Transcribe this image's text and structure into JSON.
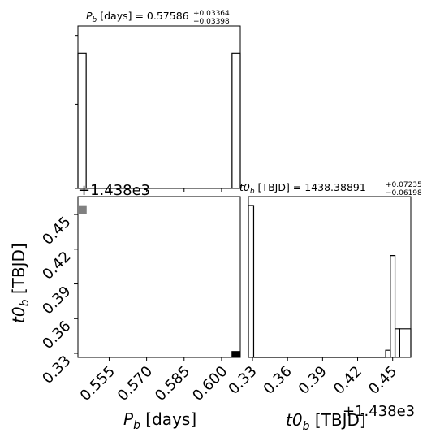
{
  "chart_data": [
    {
      "id": "pb_hist",
      "type": "histogram",
      "title_main": "P",
      "title_sub": "b",
      "title_unit": " [days] = 0.57586",
      "title_plus": "+0.03364",
      "title_minus": "−0.03398",
      "xlim": [
        0.5425,
        0.6075
      ],
      "bins": [
        {
          "x0": 0.5425,
          "x1": 0.5458,
          "count": 1.0
        },
        {
          "x0": 0.6042,
          "x1": 0.6075,
          "count": 1.0
        }
      ],
      "y_max": 1.2
    },
    {
      "id": "t0_hist",
      "type": "histogram",
      "title_main": "t0",
      "title_sub": "b",
      "title_unit": " [TBJD] = 1438.38891",
      "title_plus": "+0.07235",
      "title_minus": "−0.06198",
      "xlim": [
        0.3265,
        0.4655
      ],
      "xticks": [
        "0.33",
        "0.36",
        "0.39",
        "0.42",
        "0.45"
      ],
      "xtick_values": [
        0.33,
        0.36,
        0.39,
        0.42,
        0.45
      ],
      "offset_label": "+1.438e3",
      "xlabel_main": "t0",
      "xlabel_sub": "b",
      "xlabel_unit": " [TBJD]",
      "bins": [
        {
          "x0": 0.3265,
          "x1": 0.331,
          "count": 0.85
        },
        {
          "x0": 0.331,
          "x1": 0.444,
          "count": 0.0
        },
        {
          "x0": 0.444,
          "x1": 0.448,
          "count": 0.04
        },
        {
          "x0": 0.448,
          "x1": 0.452,
          "count": 0.57
        },
        {
          "x0": 0.452,
          "x1": 0.456,
          "count": 0.16
        },
        {
          "x0": 0.456,
          "x1": 0.4655,
          "count": 0.16
        }
      ],
      "y_max": 0.9
    },
    {
      "id": "joint",
      "type": "heatmap",
      "xlim": [
        0.5425,
        0.6075
      ],
      "ylim": [
        0.3265,
        0.4655
      ],
      "xticks": [
        "0.555",
        "0.570",
        "0.585",
        "0.600"
      ],
      "xtick_values": [
        0.555,
        0.57,
        0.585,
        0.6
      ],
      "yticks": [
        "0.33",
        "0.36",
        "0.39",
        "0.42",
        "0.45"
      ],
      "ytick_values": [
        0.33,
        0.36,
        0.39,
        0.42,
        0.45
      ],
      "offset_label": "+1.438e3",
      "xlabel_main": "P",
      "xlabel_sub": "b",
      "xlabel_unit": " [days]",
      "ylabel_main": "t0",
      "ylabel_sub": "b",
      "ylabel_unit": " [TBJD]",
      "cells": [
        {
          "x0": 0.5425,
          "x1": 0.546,
          "y0": 0.4505,
          "y1": 0.458,
          "shade": "#808080"
        },
        {
          "x0": 0.604,
          "x1": 0.6075,
          "y0": 0.3265,
          "y1": 0.332,
          "shade": "#000000"
        }
      ]
    }
  ]
}
